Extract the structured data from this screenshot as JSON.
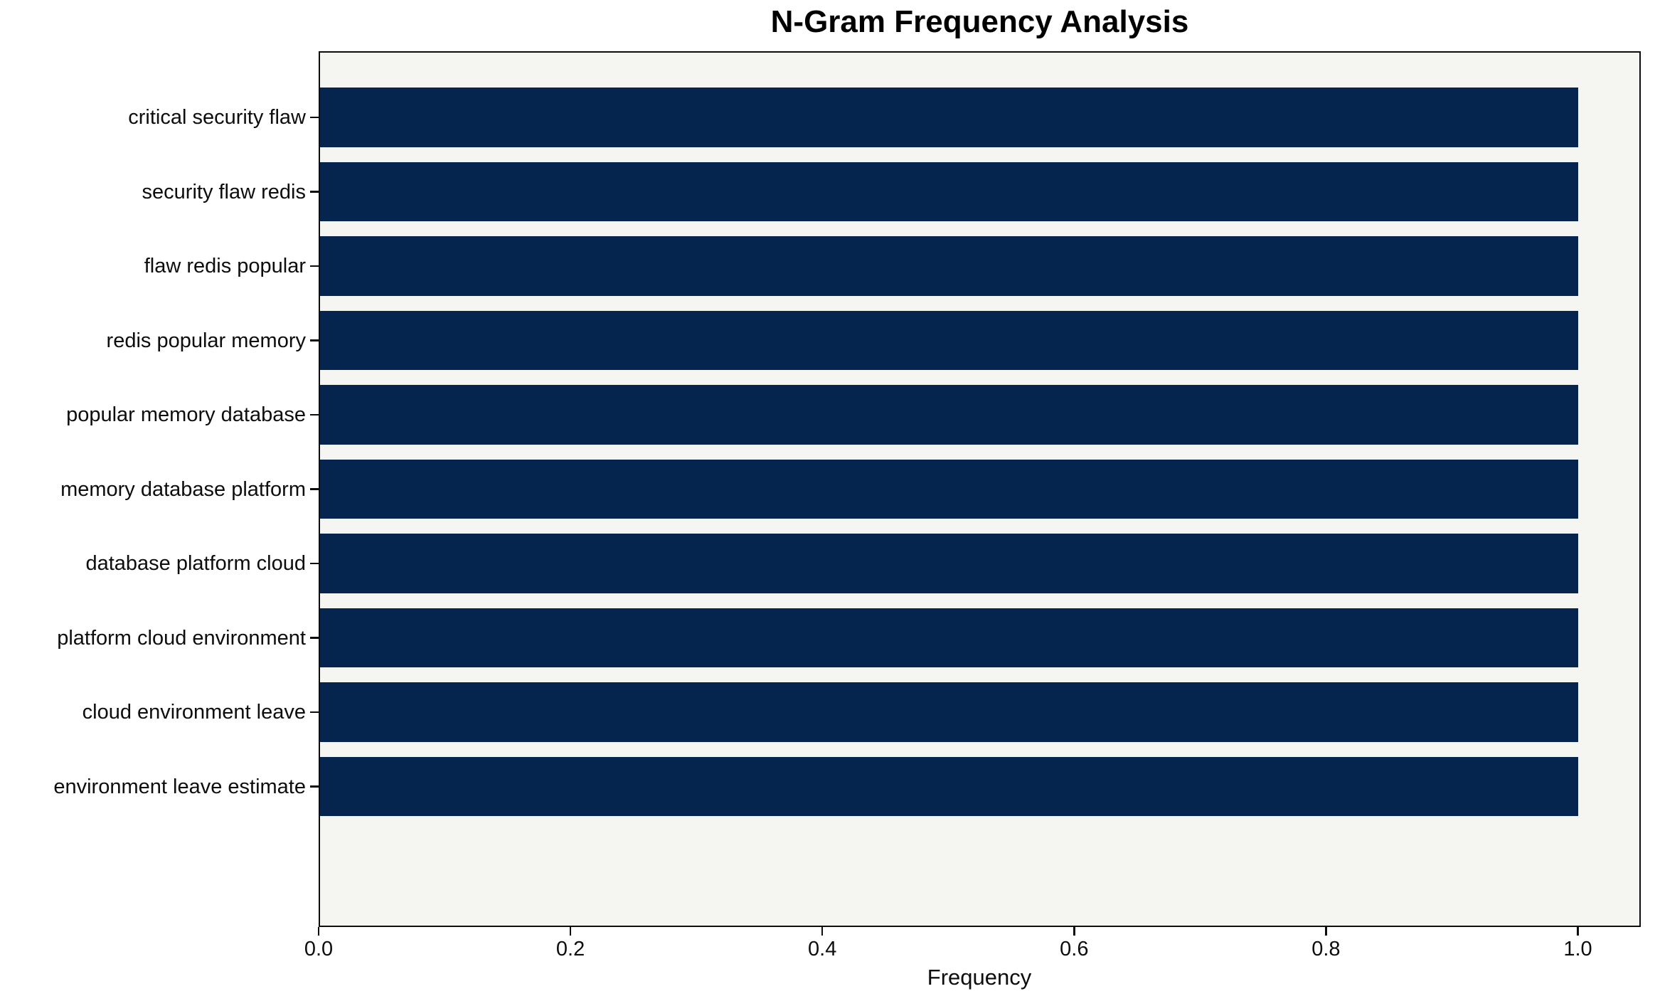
{
  "chart_data": {
    "type": "bar",
    "orientation": "horizontal",
    "title": "N-Gram Frequency Analysis",
    "xlabel": "Frequency",
    "ylabel": "",
    "categories": [
      "critical security flaw",
      "security flaw redis",
      "flaw redis popular",
      "redis popular memory",
      "popular memory database",
      "memory database platform",
      "database platform cloud",
      "platform cloud environment",
      "cloud environment leave",
      "environment leave estimate"
    ],
    "values": [
      1.0,
      1.0,
      1.0,
      1.0,
      1.0,
      1.0,
      1.0,
      1.0,
      1.0,
      1.0
    ],
    "xlim": [
      0,
      1.05
    ],
    "xticks": [
      0.0,
      0.2,
      0.4,
      0.6,
      0.8,
      1.0
    ],
    "xtick_labels": [
      "0.0",
      "0.2",
      "0.4",
      "0.6",
      "0.8",
      "1.0"
    ],
    "grid": false,
    "legend": null,
    "colors": {
      "bar": "#05254e",
      "plot_background": "#f5f5f2",
      "figure_background": "#ffffff",
      "spine": "#0d0d0d",
      "text": "#0d0d0d"
    }
  }
}
